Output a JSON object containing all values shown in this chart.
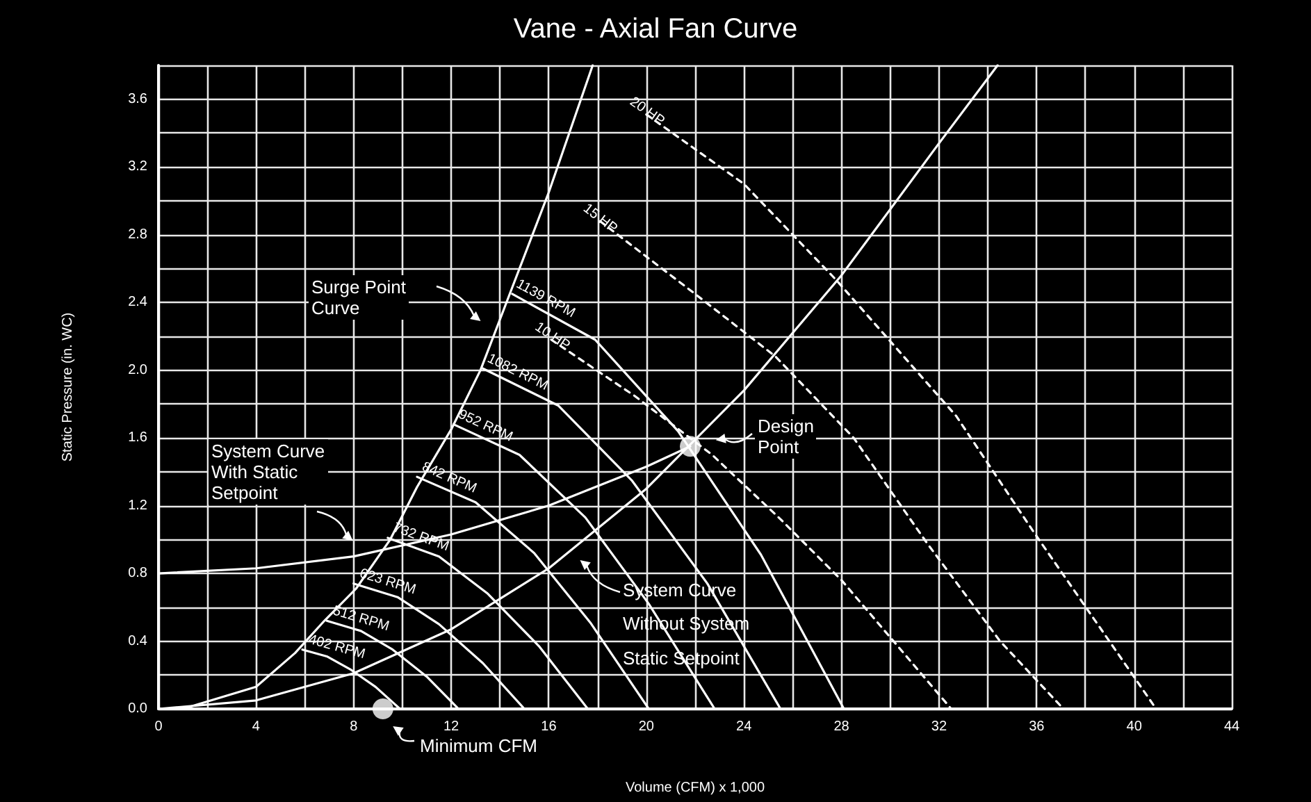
{
  "chart_data": {
    "type": "line",
    "title": "Vane - Axial Fan Curve",
    "xlabel": "Volume (CFM) x 1,000",
    "ylabel": "Static Pressure (in. WC)",
    "xlim": [
      0,
      44
    ],
    "ylim": [
      0,
      3.8
    ],
    "xticks": [
      0,
      {
        "value": 2,
        "label": null
      },
      4,
      {
        "value": 6,
        "label": null
      },
      8,
      {
        "value": 10,
        "label": null
      },
      12,
      {
        "value": 14,
        "label": null
      },
      16,
      {
        "value": 18,
        "label": null
      },
      20,
      {
        "value": 22,
        "label": null
      },
      24,
      {
        "value": 26,
        "label": null
      },
      28,
      {
        "value": 30,
        "label": null
      },
      32,
      {
        "value": 34,
        "label": null
      },
      36,
      {
        "value": 38,
        "label": null
      },
      40,
      {
        "value": 42,
        "label": null
      },
      44
    ],
    "yticks": [
      {
        "value": 0,
        "label": "0.0"
      },
      {
        "value": 0.2,
        "label": null
      },
      0.4,
      {
        "value": 0.6,
        "label": null
      },
      0.8,
      {
        "value": 1,
        "label": null
      },
      1.2,
      {
        "value": 1.4,
        "label": null
      },
      1.6,
      {
        "value": 1.8,
        "label": null
      },
      {
        "value": 2,
        "label": "2.0"
      },
      {
        "value": 2.2,
        "label": null
      },
      2.4,
      {
        "value": 2.6,
        "label": null
      },
      2.8,
      {
        "value": 3,
        "label": null
      },
      3.2,
      {
        "value": 3.4,
        "label": null
      },
      3.6,
      {
        "value": 3.8,
        "label": null
      }
    ],
    "grid": true,
    "marker": "none",
    "series": [
      {
        "color": "#ffffff",
        "x": [
          1,
          4,
          5.6,
          6.8,
          8.1,
          9.5,
          10.6,
          12,
          13.2,
          14.4,
          16,
          17.8
        ],
        "values": [
          0,
          0.13,
          0.33,
          0.52,
          0.71,
          1.0,
          1.31,
          1.65,
          2.0,
          2.45,
          3.05,
          3.8
        ]
      },
      {
        "color": "#ffffff",
        "x": [
          0,
          4,
          8,
          12,
          16,
          20,
          24,
          28,
          32,
          34.4
        ],
        "values": [
          0,
          0.05,
          0.21,
          0.47,
          0.83,
          1.3,
          1.88,
          2.56,
          3.34,
          3.8
        ]
      },
      {
        "color": "#ffffff",
        "x": [
          0,
          4,
          8,
          12,
          16,
          20,
          21.8
        ],
        "values": [
          0.8,
          0.83,
          0.9,
          1.03,
          1.2,
          1.43,
          1.55
        ]
      },
      {
        "name": "1139 RPM",
        "color": "#ffffff",
        "x": [
          14.5,
          17.9,
          21.3,
          24.7,
          28.1
        ],
        "values": [
          2.45,
          2.18,
          1.64,
          0.91,
          0
        ]
      },
      {
        "name": "1082 RPM",
        "color": "#ffffff",
        "x": [
          13.3,
          16.4,
          19.4,
          22.5,
          25.5
        ],
        "values": [
          2.01,
          1.79,
          1.35,
          0.74,
          0
        ]
      },
      {
        "name": "952 RPM",
        "color": "#ffffff",
        "x": [
          12.1,
          14.8,
          17.5,
          20.1,
          22.8
        ],
        "values": [
          1.68,
          1.5,
          1.13,
          0.62,
          0
        ]
      },
      {
        "name": "842 RPM",
        "color": "#ffffff",
        "x": [
          10.6,
          13,
          15.4,
          17.7,
          20.1
        ],
        "values": [
          1.37,
          1.22,
          0.92,
          0.51,
          0
        ]
      },
      {
        "name": "732 RPM",
        "color": "#ffffff",
        "x": [
          9.4,
          11.5,
          13.5,
          15.6,
          17.6
        ],
        "values": [
          1.01,
          0.9,
          0.68,
          0.37,
          0
        ]
      },
      {
        "name": "623 RPM",
        "color": "#ffffff",
        "x": [
          8,
          9.8,
          11.5,
          13.3,
          15
        ],
        "values": [
          0.74,
          0.66,
          0.5,
          0.27,
          0
        ]
      },
      {
        "name": "512 RPM",
        "color": "#ffffff",
        "x": [
          6.9,
          8.3,
          9.6,
          11,
          12.3
        ],
        "values": [
          0.52,
          0.46,
          0.35,
          0.19,
          0
        ]
      },
      {
        "name": "402 RPM",
        "color": "#ffffff",
        "x": [
          5.9,
          6.9,
          7.9,
          8.9,
          9.9
        ],
        "values": [
          0.35,
          0.31,
          0.23,
          0.13,
          0
        ]
      },
      {
        "name": "10 HP",
        "color": "#ffffff",
        "line_style": "dashed",
        "x": [
          16.1,
          19.5,
          22.7,
          25.5,
          28,
          32.5
        ],
        "values": [
          2.18,
          1.85,
          1.5,
          1.12,
          0.76,
          0
        ]
      },
      {
        "name": "15 HP",
        "color": "#ffffff",
        "line_style": "dashed",
        "x": [
          18.1,
          22,
          25.3,
          28.5,
          31.5,
          34.5,
          37.1
        ],
        "values": [
          2.88,
          2.45,
          2.08,
          1.6,
          0.98,
          0.4,
          0
        ]
      },
      {
        "name": "20 HP",
        "color": "#ffffff",
        "line_style": "dashed",
        "x": [
          20,
          24,
          27.8,
          32.7,
          35.9,
          38.5,
          40.9
        ],
        "values": [
          3.51,
          3.1,
          2.53,
          1.73,
          1.04,
          0.5,
          0
        ]
      },
      {
        "type": "scatter",
        "marker": "circle",
        "color": "#ffffff",
        "x": [
          21.8,
          9.2
        ],
        "values": [
          1.55,
          0
        ]
      }
    ],
    "annotations": [
      "Surge Point\nCurve",
      "System Curve\nWith Static\nSetpoint",
      "System Curve\nWithout System\nStatic Setpoint",
      "Design\nPoint",
      "Minimum CFM"
    ]
  }
}
